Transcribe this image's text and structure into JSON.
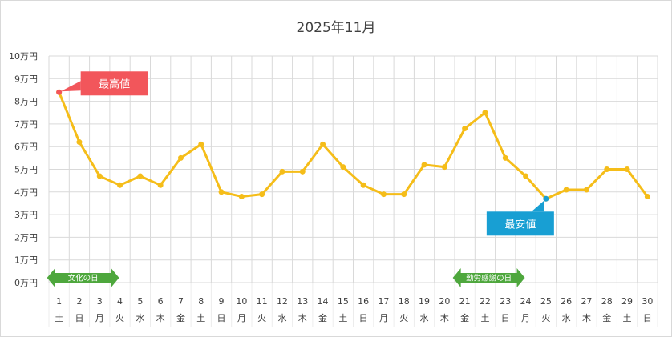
{
  "chart_data": {
    "type": "line",
    "title": "2025年11月",
    "ylim": [
      0,
      10
    ],
    "y_ticks": [
      "0万円",
      "1万円",
      "2万円",
      "3万円",
      "4万円",
      "5万円",
      "6万円",
      "7万円",
      "8万円",
      "9万円",
      "10万円"
    ],
    "x": [
      "1",
      "2",
      "3",
      "4",
      "5",
      "6",
      "7",
      "8",
      "9",
      "10",
      "11",
      "12",
      "13",
      "14",
      "15",
      "16",
      "17",
      "18",
      "19",
      "20",
      "21",
      "22",
      "23",
      "24",
      "25",
      "26",
      "27",
      "28",
      "29",
      "30"
    ],
    "weekdays": [
      "土",
      "日",
      "月",
      "火",
      "水",
      "木",
      "金",
      "土",
      "日",
      "月",
      "火",
      "水",
      "木",
      "金",
      "土",
      "日",
      "月",
      "火",
      "水",
      "木",
      "金",
      "土",
      "日",
      "月",
      "火",
      "水",
      "木",
      "金",
      "土",
      "日"
    ],
    "series": [
      {
        "values": [
          8.4,
          6.2,
          4.7,
          4.3,
          4.7,
          4.3,
          5.5,
          6.1,
          4.0,
          3.8,
          3.9,
          4.9,
          4.9,
          6.1,
          5.1,
          4.3,
          3.9,
          3.9,
          5.2,
          5.1,
          6.8,
          7.5,
          5.5,
          4.7,
          3.7,
          4.1,
          4.1,
          5.0,
          5.0,
          3.8
        ],
        "color": "#f5bd19"
      }
    ],
    "grid": true,
    "annotations": [
      {
        "label": "最高値",
        "day": 1,
        "color": "#f2565b"
      },
      {
        "label": "最安値",
        "day": 25,
        "color": "#189fd3"
      }
    ],
    "holidays": [
      {
        "label": "文化の日",
        "from_day": 1,
        "to_day": 4,
        "color": "#4ea73d"
      },
      {
        "label": "勤労感謝の日",
        "from_day": 21,
        "to_day": 24,
        "color": "#4ea73d"
      }
    ]
  }
}
